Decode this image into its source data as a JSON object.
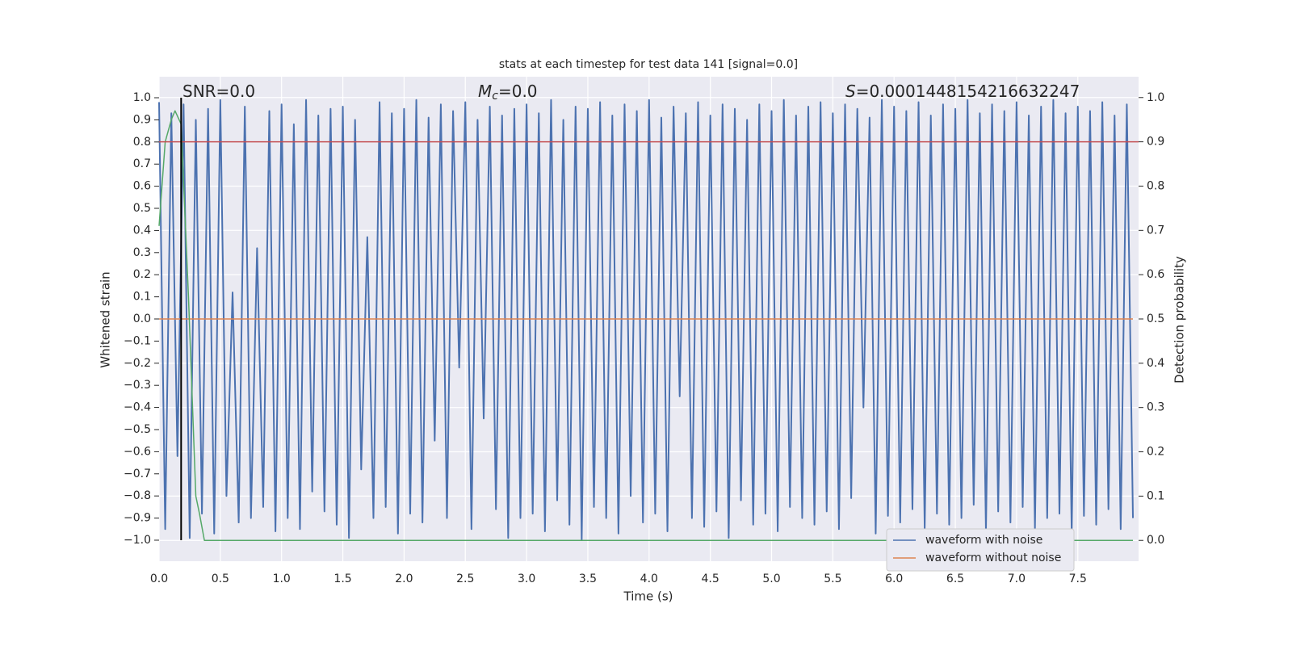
{
  "chart_data": {
    "type": "line",
    "title": "stats at each timestep for test data 141 [signal=0.0]",
    "x_label": "Time (s)",
    "y_label": "Whitened strain",
    "y2_label": "Detection probability",
    "annotations": [
      {
        "text": "SNR=0.0"
      },
      {
        "symbol": "M",
        "subscript": "c",
        "text": "=0.0"
      },
      {
        "symbol": "S",
        "text": "=0.0001448154216632247"
      }
    ],
    "xlim": [
      0,
      7.996
    ],
    "ylim": [
      -1.095,
      1.095
    ],
    "y2lim": [
      -0.047,
      1.047
    ],
    "xticks": [
      {
        "value": 0,
        "label": "0.0"
      },
      {
        "value": 0.5,
        "label": "0.5"
      },
      {
        "value": 1,
        "label": "1.0"
      },
      {
        "value": 1.5,
        "label": "1.5"
      },
      {
        "value": 2,
        "label": "2.0"
      },
      {
        "value": 2.5,
        "label": "2.5"
      },
      {
        "value": 3,
        "label": "3.0"
      },
      {
        "value": 3.5,
        "label": "3.5"
      },
      {
        "value": 4,
        "label": "4.0"
      },
      {
        "value": 4.5,
        "label": "4.5"
      },
      {
        "value": 5,
        "label": "5.0"
      },
      {
        "value": 5.5,
        "label": "5.5"
      },
      {
        "value": 6,
        "label": "6.0"
      },
      {
        "value": 6.5,
        "label": "6.5"
      },
      {
        "value": 7,
        "label": "7.0"
      },
      {
        "value": 7.5,
        "label": "7.5"
      }
    ],
    "yticks": [
      {
        "value": 1,
        "label": "1.0"
      },
      0.9,
      0.8,
      0.7,
      0.6,
      0.5,
      0.4,
      0.3,
      0.2,
      0.1,
      {
        "value": 0,
        "label": "0.0"
      },
      {
        "value": -0.1,
        "label": "−0.1"
      },
      {
        "value": -0.2,
        "label": "−0.2"
      },
      {
        "value": -0.3,
        "label": "−0.3"
      },
      {
        "value": -0.4,
        "label": "−0.4"
      },
      {
        "value": -0.5,
        "label": "−0.5"
      },
      {
        "value": -0.6,
        "label": "−0.6"
      },
      {
        "value": -0.7,
        "label": "−0.7"
      },
      {
        "value": -0.8,
        "label": "−0.8"
      },
      {
        "value": -0.9,
        "label": "−0.9"
      },
      {
        "value": -1,
        "label": "−1.0"
      }
    ],
    "y2ticks": [
      {
        "value": 1,
        "label": "1.0"
      },
      0.9,
      0.8,
      0.7,
      0.6,
      0.5,
      0.4,
      0.3,
      0.2,
      0.1,
      {
        "value": 0,
        "label": "0.0"
      }
    ],
    "grid": true,
    "legend": "lower right",
    "series": [
      {
        "name": "waveform with noise",
        "color": "#4c72b0",
        "x": [
          0,
          0.05,
          0.1,
          0.15,
          0.2,
          0.25,
          0.3,
          0.35,
          0.4,
          0.45,
          0.5,
          0.55,
          0.6,
          0.65,
          0.7,
          0.75,
          0.8,
          0.85,
          0.9,
          0.95,
          1,
          1.05,
          1.1,
          1.15,
          1.2,
          1.25,
          1.3,
          1.35,
          1.4,
          1.45,
          1.5,
          1.55,
          1.6,
          1.65,
          1.7,
          1.75,
          1.8,
          1.85,
          1.9,
          1.95,
          2,
          2.05,
          2.1,
          2.15,
          2.2,
          2.25,
          2.3,
          2.35,
          2.4,
          2.45,
          2.5,
          2.55,
          2.6,
          2.65,
          2.7,
          2.75,
          2.8,
          2.85,
          2.9,
          2.95,
          3,
          3.05,
          3.1,
          3.15,
          3.2,
          3.25,
          3.3,
          3.35,
          3.4,
          3.45,
          3.5,
          3.55,
          3.6,
          3.65,
          3.7,
          3.75,
          3.8,
          3.85,
          3.9,
          3.95,
          4,
          4.05,
          4.1,
          4.15,
          4.2,
          4.25,
          4.3,
          4.35,
          4.4,
          4.45,
          4.5,
          4.55,
          4.6,
          4.65,
          4.7,
          4.75,
          4.8,
          4.85,
          4.9,
          4.95,
          5,
          5.05,
          5.1,
          5.15,
          5.2,
          5.25,
          5.3,
          5.35,
          5.4,
          5.45,
          5.5,
          5.55,
          5.6,
          5.65,
          5.7,
          5.75,
          5.8,
          5.85,
          5.9,
          5.95,
          6,
          6.05,
          6.1,
          6.15,
          6.2,
          6.25,
          6.3,
          6.35,
          6.4,
          6.45,
          6.5,
          6.55,
          6.6,
          6.65,
          6.7,
          6.75,
          6.8,
          6.85,
          6.9,
          6.95,
          7,
          7.05,
          7.1,
          7.15,
          7.2,
          7.25,
          7.3,
          7.35,
          7.4,
          7.45,
          7.5,
          7.55,
          7.6,
          7.65,
          7.7,
          7.75,
          7.8,
          7.85,
          7.9,
          7.95
        ],
        "values": [
          0.98,
          -0.95,
          0.93,
          -0.62,
          0.97,
          -0.99,
          0.9,
          -0.88,
          0.95,
          -0.97,
          0.99,
          -0.8,
          0.12,
          -0.92,
          0.96,
          -0.9,
          0.32,
          -0.85,
          0.94,
          -0.96,
          0.97,
          -0.9,
          0.88,
          -0.95,
          0.99,
          -0.78,
          0.92,
          -0.87,
          0.95,
          -0.93,
          0.96,
          -0.99,
          0.9,
          -0.68,
          0.37,
          -0.9,
          0.98,
          -0.85,
          0.93,
          -0.97,
          0.95,
          -0.88,
          0.99,
          -0.92,
          0.91,
          -0.55,
          0.97,
          -0.9,
          0.94,
          -0.22,
          0.98,
          -0.95,
          0.9,
          -0.45,
          0.96,
          -0.86,
          0.92,
          -0.99,
          0.95,
          -0.9,
          0.97,
          -0.88,
          0.93,
          -0.96,
          0.99,
          -0.82,
          0.9,
          -0.93,
          0.96,
          -1.0,
          0.95,
          -0.85,
          0.98,
          -0.9,
          0.92,
          -0.97,
          0.97,
          -0.8,
          0.94,
          -0.92,
          0.99,
          -0.88,
          0.91,
          -0.96,
          0.96,
          -0.35,
          0.93,
          -0.9,
          0.98,
          -0.94,
          0.92,
          -0.87,
          0.97,
          -0.99,
          0.95,
          -0.82,
          0.9,
          -0.93,
          0.97,
          -0.88,
          0.94,
          -0.96,
          0.99,
          -0.85,
          0.92,
          -0.9,
          0.96,
          -0.93,
          0.98,
          -0.87,
          0.93,
          -0.95,
          0.97,
          -0.81,
          0.95,
          -0.4,
          0.91,
          -0.97,
          0.99,
          -0.89,
          0.96,
          -0.92,
          0.94,
          -0.86,
          0.98,
          -0.95,
          0.92,
          -0.88,
          0.97,
          -0.93,
          0.95,
          -0.9,
          0.99,
          -0.84,
          0.93,
          -0.96,
          0.97,
          -0.87,
          0.94,
          -0.92,
          0.98,
          -0.85,
          0.92,
          -0.95,
          0.96,
          -0.9,
          0.99,
          -0.88,
          0.93,
          -0.97,
          0.96,
          -0.89,
          0.94,
          -0.93,
          0.98,
          -0.86,
          0.92,
          -0.95,
          0.97,
          -0.9
        ]
      },
      {
        "name": "waveform without noise",
        "color": "#dd8452",
        "x": [
          0,
          7.95
        ],
        "values": [
          0,
          0
        ]
      },
      {
        "color": "#55a868",
        "axis": "y2",
        "x": [
          0,
          0.05,
          0.1,
          0.13,
          0.18,
          0.24,
          0.3,
          0.33,
          0.37,
          7.95
        ],
        "values": [
          0.71,
          0.9,
          0.95,
          0.97,
          0.94,
          0.55,
          0.1,
          0.06,
          0,
          0
        ]
      }
    ],
    "hlines": [
      {
        "value": 0.9,
        "axis": "y2",
        "color": "#c44e52"
      }
    ],
    "vlines": [
      {
        "value": 0.18,
        "color": "#000000"
      }
    ]
  }
}
